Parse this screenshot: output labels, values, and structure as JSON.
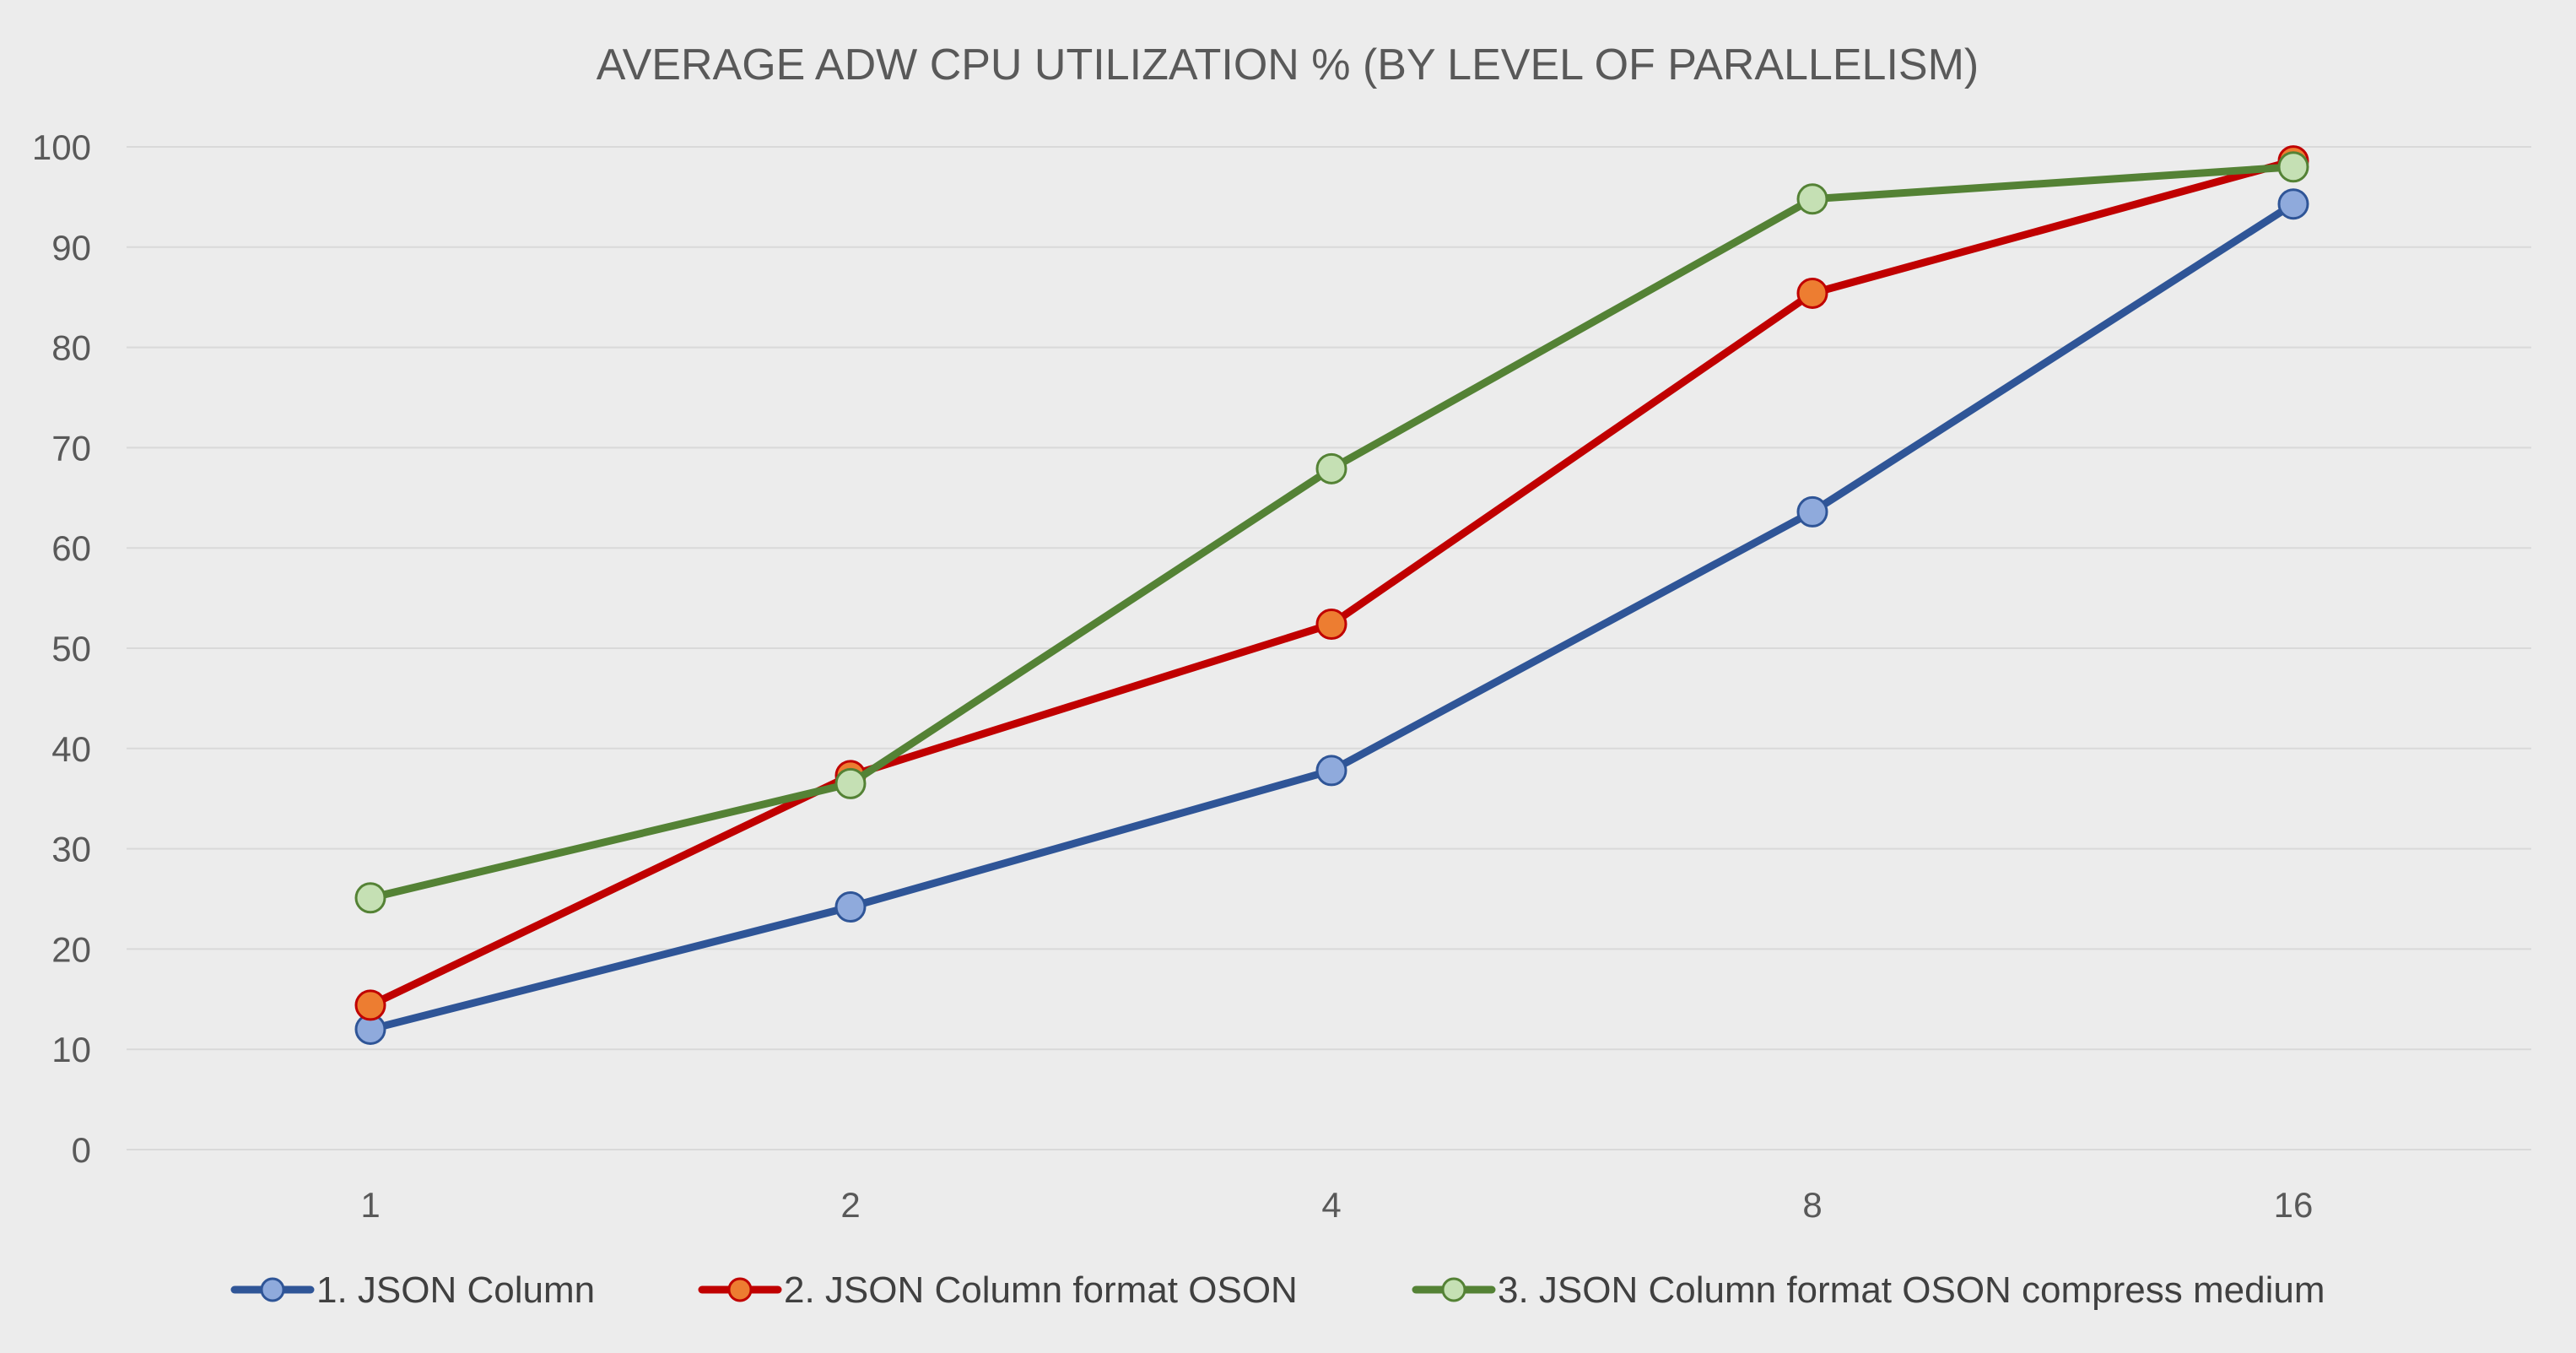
{
  "chart_data": {
    "type": "line",
    "title": "AVERAGE ADW CPU UTILIZATION % (BY LEVEL OF PARALLELISM)",
    "xlabel": "",
    "ylabel": "",
    "categories": [
      "1",
      "2",
      "4",
      "8",
      "16"
    ],
    "ylim": [
      0,
      100
    ],
    "yticks": [
      0,
      10,
      20,
      30,
      40,
      50,
      60,
      70,
      80,
      90,
      100
    ],
    "grid": true,
    "legend_position": "bottom",
    "background_color": "#ececec",
    "gridline_color": "#d9d9d9",
    "series": [
      {
        "name": "1. JSON Column",
        "values": [
          12,
          24.2,
          37.8,
          63.6,
          94.3
        ],
        "line_color": "#2f5597",
        "marker_fill": "#8faadc"
      },
      {
        "name": "2. JSON Column format OSON",
        "values": [
          14.4,
          37.3,
          52.4,
          85.4,
          98.6
        ],
        "line_color": "#c00000",
        "marker_fill": "#ed7d31"
      },
      {
        "name": "3. JSON Column format OSON compress medium",
        "values": [
          25.1,
          36.5,
          67.9,
          94.8,
          98
        ],
        "line_color": "#548235",
        "marker_fill": "#c5e0b4"
      }
    ]
  }
}
